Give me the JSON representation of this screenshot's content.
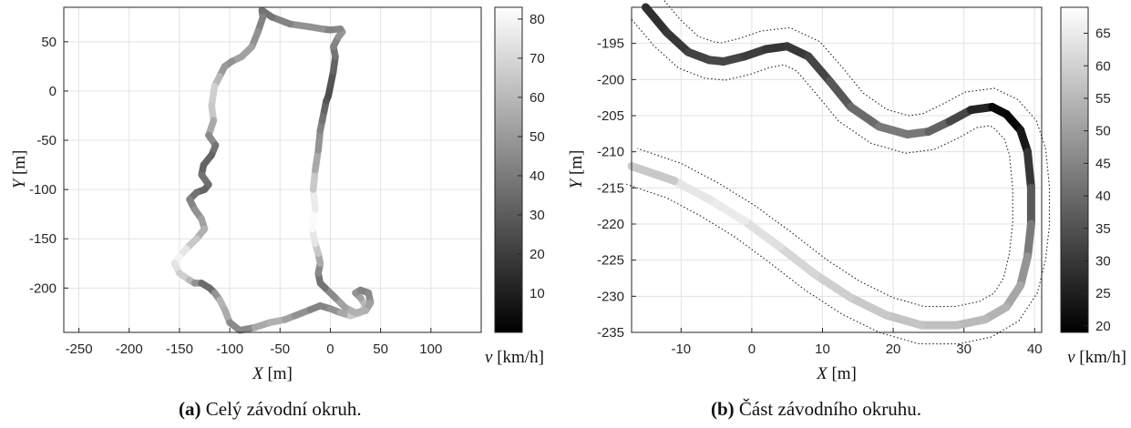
{
  "captions": [
    {
      "tag": "(a)",
      "text": "Celý závodní okruh."
    },
    {
      "tag": "(b)",
      "text": "Část závodního okruhu."
    }
  ],
  "chart_data": [
    {
      "type": "line",
      "subtype": "speed-colored track",
      "xlabel": {
        "symbol": "X",
        "unit": "[m]"
      },
      "ylabel": {
        "symbol": "Y",
        "unit": "[m]"
      },
      "xlim": [
        -265,
        150
      ],
      "ylim": [
        -245,
        85
      ],
      "xticks": [
        -250,
        -200,
        -150,
        -100,
        -50,
        0,
        50,
        100
      ],
      "yticks": [
        50,
        0,
        -50,
        -100,
        -150,
        -200
      ],
      "grid": true,
      "colorbar": {
        "label_symbol": "v",
        "label_unit": "[km/h]",
        "min": 0,
        "max": 83,
        "ticks": [
          80,
          70,
          60,
          50,
          40,
          30,
          20,
          10
        ],
        "colormap": "gray"
      },
      "track": {
        "x": [
          -2,
          0,
          3,
          5,
          3,
          8,
          12,
          10,
          0,
          -8,
          -20,
          -40,
          -58,
          -68,
          -67,
          -72,
          -78,
          -88,
          -98,
          -105,
          -110,
          -115,
          -118,
          -116,
          -121,
          -114,
          -118,
          -126,
          -128,
          -121,
          -125,
          -133,
          -140,
          -135,
          -128,
          -125,
          -133,
          -143,
          -150,
          -155,
          -150,
          -140,
          -135,
          -128,
          -120,
          -115,
          -110,
          -105,
          -100,
          -90,
          -75,
          -60,
          -45,
          -35,
          -20,
          -10,
          0,
          10,
          20,
          30,
          35,
          30,
          25,
          30,
          38,
          40,
          35,
          25,
          15,
          5,
          -5,
          -10,
          -12,
          -10,
          -12,
          -15,
          -18,
          -15,
          -17,
          -15,
          -12,
          -10,
          -8,
          -6,
          -4,
          -2
        ],
        "y": [
          -5,
          5,
          20,
          35,
          45,
          55,
          60,
          63,
          62,
          63,
          65,
          68,
          75,
          82,
          75,
          60,
          45,
          35,
          30,
          25,
          15,
          5,
          -15,
          -30,
          -45,
          -55,
          -65,
          -75,
          -85,
          -95,
          -100,
          -103,
          -110,
          -120,
          -130,
          -140,
          -150,
          -160,
          -168,
          -175,
          -185,
          -192,
          -195,
          -195,
          -200,
          -205,
          -212,
          -222,
          -235,
          -243,
          -240,
          -235,
          -232,
          -228,
          -222,
          -218,
          -221,
          -225,
          -228,
          -225,
          -218,
          -210,
          -205,
          -202,
          -205,
          -215,
          -223,
          -225,
          -220,
          -210,
          -200,
          -195,
          -185,
          -175,
          -165,
          -155,
          -140,
          -120,
          -100,
          -80,
          -60,
          -40,
          -30,
          -20,
          -10,
          -5
        ],
        "v": [
          25,
          25,
          30,
          35,
          40,
          45,
          50,
          48,
          40,
          45,
          50,
          45,
          40,
          35,
          40,
          45,
          50,
          55,
          50,
          45,
          55,
          65,
          70,
          60,
          50,
          40,
          35,
          30,
          35,
          40,
          30,
          35,
          40,
          45,
          50,
          55,
          60,
          70,
          80,
          78,
          70,
          65,
          55,
          40,
          30,
          40,
          55,
          62,
          50,
          40,
          50,
          60,
          55,
          50,
          45,
          40,
          45,
          50,
          60,
          70,
          65,
          55,
          50,
          45,
          40,
          50,
          55,
          60,
          55,
          50,
          40,
          35,
          40,
          50,
          60,
          70,
          80,
          83,
          70,
          60,
          50,
          45,
          40,
          35,
          30,
          25
        ]
      }
    },
    {
      "type": "line",
      "subtype": "speed-colored track segment",
      "xlabel": {
        "symbol": "X",
        "unit": "[m]"
      },
      "ylabel": {
        "symbol": "Y",
        "unit": "[m]"
      },
      "xlim": [
        -17,
        41
      ],
      "ylim": [
        -235,
        -190
      ],
      "xticks": [
        -10,
        0,
        10,
        20,
        30,
        40
      ],
      "yticks": [
        -195,
        -200,
        -205,
        -210,
        -215,
        -220,
        -225,
        -230,
        -235
      ],
      "grid": true,
      "colorbar": {
        "label_symbol": "v",
        "label_unit": "[km/h]",
        "min": 19,
        "max": 69,
        "ticks": [
          65,
          60,
          55,
          50,
          45,
          40,
          35,
          30,
          25,
          20
        ],
        "colormap": "gray"
      },
      "track": {
        "x": [
          -15,
          -12,
          -9,
          -6,
          -4,
          -1,
          2,
          5,
          8,
          11,
          14,
          18,
          22,
          25,
          28,
          31,
          34,
          36,
          38,
          39,
          39.5,
          39.5,
          39,
          38,
          36,
          33,
          29,
          24,
          19,
          14,
          9,
          4,
          -1,
          -6,
          -11,
          -17
        ],
        "y": [
          -190,
          -193.5,
          -196.2,
          -197.3,
          -197.5,
          -196.8,
          -195.8,
          -195.4,
          -196.8,
          -200.2,
          -203.8,
          -206.5,
          -207.6,
          -207.2,
          -205.8,
          -204.2,
          -203.8,
          -204.8,
          -207,
          -210,
          -215,
          -220,
          -224.5,
          -228.5,
          -231.5,
          -233.2,
          -234,
          -234,
          -232.6,
          -230.2,
          -227,
          -223.2,
          -219.6,
          -216.6,
          -214,
          -212
        ],
        "v": [
          28,
          29,
          31,
          33,
          33,
          32,
          30,
          29,
          31,
          34,
          38,
          42,
          44,
          41,
          36,
          30,
          22,
          19,
          21,
          26,
          33,
          40,
          46,
          50,
          53,
          55,
          56,
          57,
          58,
          59,
          60,
          62,
          64,
          66,
          62,
          55
        ]
      }
    }
  ]
}
